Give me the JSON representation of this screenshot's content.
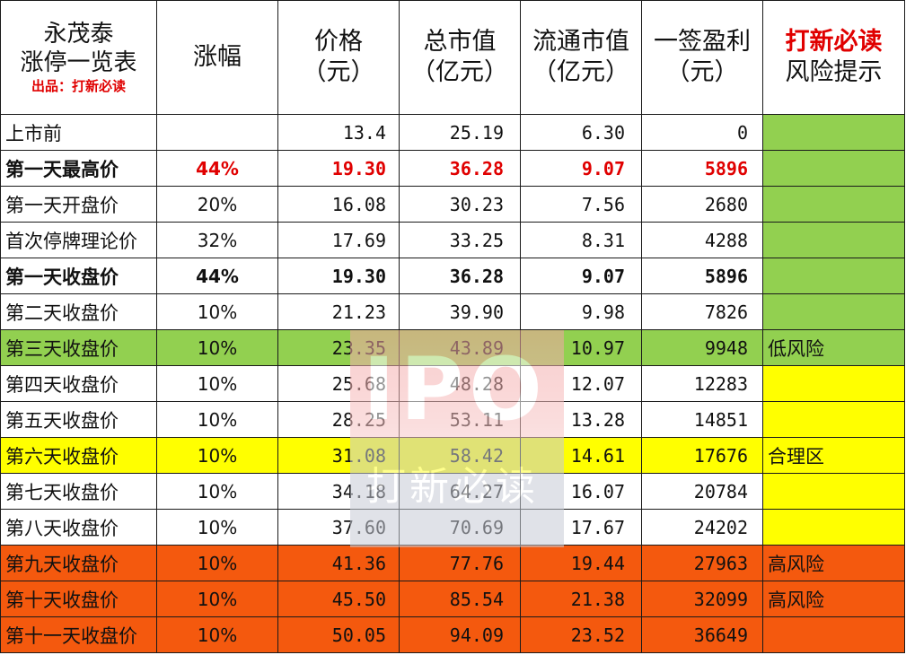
{
  "header": {
    "title_line1": "永茂泰",
    "title_line2": "涨停一览表",
    "credit": "出品：打新必读",
    "col_change": "涨幅",
    "col_price": "价格",
    "col_price_unit": "（元）",
    "col_mcap": "总市值",
    "col_mcap_unit": "（亿元）",
    "col_float": "流通市值",
    "col_float_unit": "（亿元）",
    "col_profit": "一签盈利",
    "col_profit_unit": "（元）",
    "col_risk": "打新必读",
    "col_risk2": "风险提示"
  },
  "rows": [
    {
      "label": "上市前",
      "change": "",
      "price": "13.4",
      "mcap": "25.19",
      "float": "6.30",
      "profit": "0",
      "risk": ""
    },
    {
      "label": "第一天最高价",
      "change": "44%",
      "price": "19.30",
      "mcap": "36.28",
      "float": "9.07",
      "profit": "5896",
      "risk": ""
    },
    {
      "label": "第一天开盘价",
      "change": "20%",
      "price": "16.08",
      "mcap": "30.23",
      "float": "7.56",
      "profit": "2680",
      "risk": ""
    },
    {
      "label": "首次停牌理论价",
      "change": "32%",
      "price": "17.69",
      "mcap": "33.25",
      "float": "8.31",
      "profit": "4288",
      "risk": ""
    },
    {
      "label": "第一天收盘价",
      "change": "44%",
      "price": "19.30",
      "mcap": "36.28",
      "float": "9.07",
      "profit": "5896",
      "risk": ""
    },
    {
      "label": "第二天收盘价",
      "change": "10%",
      "price": "21.23",
      "mcap": "39.90",
      "float": "9.98",
      "profit": "7826",
      "risk": ""
    },
    {
      "label": "第三天收盘价",
      "change": "10%",
      "price": "23.35",
      "mcap": "43.89",
      "float": "10.97",
      "profit": "9948",
      "risk": "低风险"
    },
    {
      "label": "第四天收盘价",
      "change": "10%",
      "price": "25.68",
      "mcap": "48.28",
      "float": "12.07",
      "profit": "12283",
      "risk": ""
    },
    {
      "label": "第五天收盘价",
      "change": "10%",
      "price": "28.25",
      "mcap": "53.11",
      "float": "13.28",
      "profit": "14851",
      "risk": ""
    },
    {
      "label": "第六天收盘价",
      "change": "10%",
      "price": "31.08",
      "mcap": "58.42",
      "float": "14.61",
      "profit": "17676",
      "risk": "合理区"
    },
    {
      "label": "第七天收盘价",
      "change": "10%",
      "price": "34.18",
      "mcap": "64.27",
      "float": "16.07",
      "profit": "20784",
      "risk": ""
    },
    {
      "label": "第八天收盘价",
      "change": "10%",
      "price": "37.60",
      "mcap": "70.69",
      "float": "17.67",
      "profit": "24202",
      "risk": ""
    },
    {
      "label": "第九天收盘价",
      "change": "10%",
      "price": "41.36",
      "mcap": "77.76",
      "float": "19.44",
      "profit": "27963",
      "risk": "高风险"
    },
    {
      "label": "第十天收盘价",
      "change": "10%",
      "price": "45.50",
      "mcap": "85.54",
      "float": "21.38",
      "profit": "32099",
      "risk": "高风险"
    },
    {
      "label": "第十一天收盘价",
      "change": "10%",
      "price": "50.05",
      "mcap": "94.09",
      "float": "23.52",
      "profit": "36649",
      "risk": ""
    }
  ],
  "watermark": {
    "logo": "IPO",
    "text": "打新必读"
  },
  "colors": {
    "low_risk": "#92d050",
    "reasonable": "#ffff00",
    "high_risk": "#f4590e",
    "highlight_text": "#e00000"
  }
}
